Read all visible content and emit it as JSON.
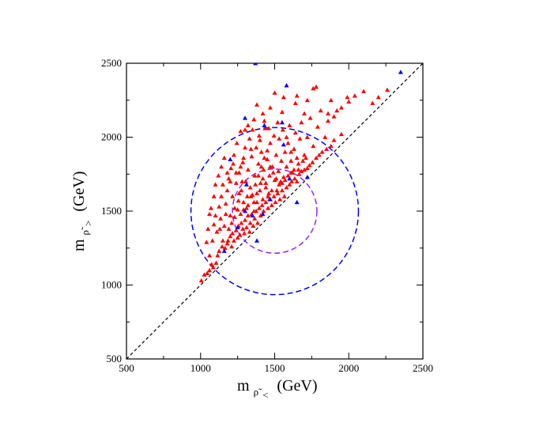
{
  "chart_data": {
    "type": "scatter",
    "title": "",
    "xlabel": {
      "base": "m",
      "sub": "ρ̃",
      "subsub": "<",
      "unit": "(GeV)"
    },
    "ylabel": {
      "base": "m",
      "sub": "ρ̃",
      "subsub": ">",
      "unit": "(GeV)"
    },
    "xlim": [
      500,
      2500
    ],
    "ylim": [
      500,
      2500
    ],
    "xticks": [
      "500",
      "1000",
      "1500",
      "2000",
      "2500"
    ],
    "yticks": [
      "500",
      "1000",
      "1500",
      "2000",
      "2500"
    ],
    "grid": false,
    "colors": {
      "series_red": "#ff0000",
      "series_blue": "#0000ff",
      "diagonal": "#000000",
      "circle_large": "#0000ff",
      "circle_small": "#a020f0"
    },
    "reference_lines": [
      {
        "name": "diagonal",
        "style": "dashed",
        "from": [
          500,
          500
        ],
        "to": [
          2500,
          2500
        ]
      }
    ],
    "circles": [
      {
        "name": "circle-large",
        "cx": 1500,
        "cy": 1500,
        "r": 565,
        "style": "dashed"
      },
      {
        "name": "circle-small",
        "cx": 1500,
        "cy": 1500,
        "r": 285,
        "style": "dashed"
      }
    ],
    "series": [
      {
        "name": "red",
        "marker": "triangle",
        "points": [
          [
            1005,
            1030
          ],
          [
            1025,
            1070
          ],
          [
            1045,
            1080
          ],
          [
            1060,
            1100
          ],
          [
            1075,
            1140
          ],
          [
            1085,
            1120
          ],
          [
            1105,
            1150
          ],
          [
            1115,
            1200
          ],
          [
            1125,
            1230
          ],
          [
            1145,
            1260
          ],
          [
            1165,
            1250
          ],
          [
            1180,
            1280
          ],
          [
            1185,
            1300
          ],
          [
            1200,
            1330
          ],
          [
            1210,
            1260
          ],
          [
            1215,
            1350
          ],
          [
            1225,
            1300
          ],
          [
            1240,
            1370
          ],
          [
            1250,
            1320
          ],
          [
            1255,
            1400
          ],
          [
            1265,
            1340
          ],
          [
            1275,
            1420
          ],
          [
            1285,
            1380
          ],
          [
            1295,
            1350
          ],
          [
            1300,
            1440
          ],
          [
            1310,
            1390
          ],
          [
            1320,
            1470
          ],
          [
            1330,
            1360
          ],
          [
            1335,
            1420
          ],
          [
            1345,
            1480
          ],
          [
            1355,
            1400
          ],
          [
            1365,
            1450
          ],
          [
            1375,
            1500
          ],
          [
            1385,
            1420
          ],
          [
            1395,
            1520
          ],
          [
            1405,
            1470
          ],
          [
            1415,
            1540
          ],
          [
            1425,
            1500
          ],
          [
            1440,
            1560
          ],
          [
            1455,
            1520
          ],
          [
            1465,
            1580
          ],
          [
            1480,
            1540
          ],
          [
            1495,
            1600
          ],
          [
            1505,
            1560
          ],
          [
            1520,
            1620
          ],
          [
            1535,
            1580
          ],
          [
            1550,
            1640
          ],
          [
            1565,
            1600
          ],
          [
            1580,
            1660
          ],
          [
            1600,
            1680
          ],
          [
            1615,
            1700
          ],
          [
            1635,
            1720
          ],
          [
            1650,
            1700
          ],
          [
            1665,
            1750
          ],
          [
            1680,
            1770
          ],
          [
            1700,
            1780
          ],
          [
            1720,
            1790
          ],
          [
            1735,
            1810
          ],
          [
            1755,
            1830
          ],
          [
            1780,
            1860
          ],
          [
            1800,
            1880
          ],
          [
            1820,
            1900
          ],
          [
            1850,
            1920
          ],
          [
            1880,
            1940
          ],
          [
            1900,
            1980
          ],
          [
            1950,
            2020
          ],
          [
            1080,
            1300
          ],
          [
            1090,
            1410
          ],
          [
            1100,
            1470
          ],
          [
            1110,
            1360
          ],
          [
            1125,
            1530
          ],
          [
            1135,
            1450
          ],
          [
            1140,
            1600
          ],
          [
            1150,
            1680
          ],
          [
            1160,
            1400
          ],
          [
            1170,
            1550
          ],
          [
            1180,
            1640
          ],
          [
            1190,
            1720
          ],
          [
            1200,
            1470
          ],
          [
            1205,
            1790
          ],
          [
            1215,
            1600
          ],
          [
            1225,
            1880
          ],
          [
            1230,
            1520
          ],
          [
            1240,
            1690
          ],
          [
            1245,
            1960
          ],
          [
            1255,
            1570
          ],
          [
            1260,
            1760
          ],
          [
            1270,
            2040
          ],
          [
            1275,
            1640
          ],
          [
            1285,
            1830
          ],
          [
            1290,
            1510
          ],
          [
            1300,
            1930
          ],
          [
            1305,
            1700
          ],
          [
            1315,
            1600
          ],
          [
            1320,
            1780
          ],
          [
            1330,
            1990
          ],
          [
            1335,
            1660
          ],
          [
            1345,
            1870
          ],
          [
            1350,
            2050
          ],
          [
            1360,
            1560
          ],
          [
            1365,
            1740
          ],
          [
            1375,
            1930
          ],
          [
            1380,
            1620
          ],
          [
            1390,
            1820
          ],
          [
            1395,
            2010
          ],
          [
            1405,
            1690
          ],
          [
            1410,
            1900
          ],
          [
            1420,
            1580
          ],
          [
            1425,
            1780
          ],
          [
            1435,
            2060
          ],
          [
            1440,
            1660
          ],
          [
            1450,
            1850
          ],
          [
            1455,
            1600
          ],
          [
            1465,
            1740
          ],
          [
            1470,
            1960
          ],
          [
            1480,
            1640
          ],
          [
            1485,
            1800
          ],
          [
            1495,
            2010
          ],
          [
            1500,
            1710
          ],
          [
            1510,
            1880
          ],
          [
            1515,
            1640
          ],
          [
            1525,
            1770
          ],
          [
            1530,
            1990
          ],
          [
            1540,
            1700
          ],
          [
            1545,
            1840
          ],
          [
            1555,
            2050
          ],
          [
            1560,
            1730
          ],
          [
            1570,
            1900
          ],
          [
            1580,
            1800
          ],
          [
            1590,
            1960
          ],
          [
            1600,
            2080
          ],
          [
            1610,
            1840
          ],
          [
            1620,
            1760
          ],
          [
            1630,
            1920
          ],
          [
            1640,
            2030
          ],
          [
            1650,
            1860
          ],
          [
            1660,
            1780
          ],
          [
            1670,
            1990
          ],
          [
            1680,
            2100
          ],
          [
            1700,
            1880
          ],
          [
            1720,
            2000
          ],
          [
            1740,
            2130
          ],
          [
            1760,
            1940
          ],
          [
            1790,
            2070
          ],
          [
            1810,
            2180
          ],
          [
            1840,
            2000
          ],
          [
            1860,
            2110
          ],
          [
            1900,
            2140
          ],
          [
            1950,
            2200
          ],
          [
            2000,
            2240
          ],
          [
            1500,
            2300
          ],
          [
            1640,
            2230
          ],
          [
            1720,
            2250
          ],
          [
            1780,
            2340
          ],
          [
            1760,
            2330
          ],
          [
            1650,
            2280
          ],
          [
            1560,
            2270
          ],
          [
            1470,
            2200
          ],
          [
            1420,
            2160
          ],
          [
            1360,
            2120
          ],
          [
            1320,
            2080
          ],
          [
            1990,
            2270
          ],
          [
            2040,
            2280
          ],
          [
            2160,
            2230
          ],
          [
            2260,
            2320
          ],
          [
            2200,
            2270
          ],
          [
            2100,
            2310
          ],
          [
            1880,
            2250
          ],
          [
            1920,
            2180
          ],
          [
            1860,
            2160
          ],
          [
            1700,
            2160
          ],
          [
            1550,
            2170
          ],
          [
            1430,
            2110
          ],
          [
            1380,
            2220
          ],
          [
            1300,
            2050
          ],
          [
            1270,
            1480
          ],
          [
            1290,
            1560
          ],
          [
            1310,
            1520
          ],
          [
            1340,
            1600
          ],
          [
            1360,
            1500
          ],
          [
            1380,
            1560
          ],
          [
            1400,
            1640
          ],
          [
            1420,
            1720
          ],
          [
            1440,
            1690
          ],
          [
            1460,
            1620
          ],
          [
            1260,
            1620
          ],
          [
            1280,
            1700
          ],
          [
            1240,
            1760
          ],
          [
            1220,
            1820
          ],
          [
            1200,
            1700
          ],
          [
            1180,
            1760
          ],
          [
            1160,
            1860
          ],
          [
            1140,
            1800
          ],
          [
            1120,
            1740
          ],
          [
            1100,
            1680
          ],
          [
            1090,
            1600
          ],
          [
            1070,
            1520
          ],
          [
            1060,
            1480
          ],
          [
            1050,
            1380
          ],
          [
            1040,
            1290
          ],
          [
            1060,
            1200
          ],
          [
            1130,
            1380
          ],
          [
            1150,
            1300
          ],
          [
            1170,
            1480
          ],
          [
            1190,
            1380
          ],
          [
            1210,
            1420
          ],
          [
            1230,
            1460
          ],
          [
            1250,
            1510
          ],
          [
            1320,
            1540
          ],
          [
            1350,
            1610
          ],
          [
            1370,
            1680
          ],
          [
            1390,
            1740
          ],
          [
            1410,
            1800
          ],
          [
            1430,
            1860
          ],
          [
            1450,
            1910
          ],
          [
            1470,
            1800
          ],
          [
            1490,
            1760
          ],
          [
            1510,
            1720
          ],
          [
            1530,
            1680
          ],
          [
            1550,
            1690
          ],
          [
            1570,
            1710
          ],
          [
            1590,
            1740
          ],
          [
            1610,
            1760
          ],
          [
            1630,
            1780
          ],
          [
            1660,
            1820
          ],
          [
            1690,
            1840
          ],
          [
            1710,
            1860
          ],
          [
            1610,
            1900
          ],
          [
            1580,
            2000
          ],
          [
            1520,
            2100
          ],
          [
            1460,
            2060
          ],
          [
            1400,
            1980
          ],
          [
            1340,
            1920
          ],
          [
            1290,
            1860
          ],
          [
            1270,
            1800
          ]
        ]
      },
      {
        "name": "blue",
        "marker": "triangle",
        "points": [
          [
            1370,
            2500
          ],
          [
            1580,
            2350
          ],
          [
            2350,
            2440
          ],
          [
            1300,
            2130
          ],
          [
            1430,
            2080
          ],
          [
            1550,
            2100
          ],
          [
            1200,
            1850
          ],
          [
            1600,
            1720
          ],
          [
            1300,
            1500
          ],
          [
            1350,
            1470
          ],
          [
            1420,
            1480
          ],
          [
            1160,
            1230
          ],
          [
            1310,
            1680
          ],
          [
            1470,
            1580
          ],
          [
            1560,
            1950
          ],
          [
            1720,
            1730
          ],
          [
            1650,
            1560
          ],
          [
            1250,
            1390
          ],
          [
            1380,
            1300
          ]
        ]
      }
    ]
  }
}
